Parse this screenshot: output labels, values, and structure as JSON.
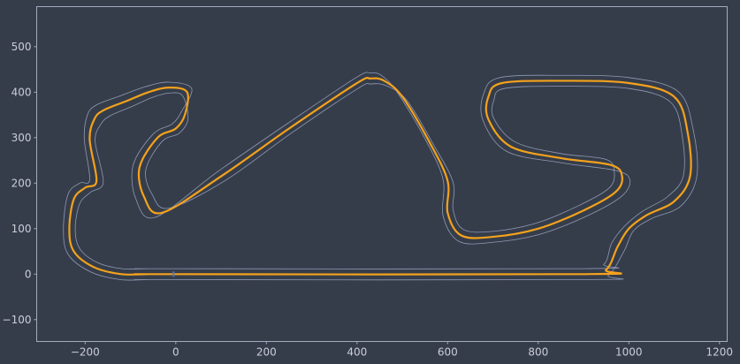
{
  "chart_data": {
    "type": "line",
    "title": "",
    "xlabel": "",
    "ylabel": "",
    "xlim": [
      -307,
      1217
    ],
    "ylim": [
      -148,
      588
    ],
    "grid": false,
    "legend": "none",
    "x_ticks": [
      -200,
      0,
      200,
      400,
      600,
      800,
      1000,
      1200
    ],
    "y_ticks": [
      -100,
      0,
      100,
      200,
      300,
      400,
      500
    ],
    "colors": {
      "background": "#363d4a",
      "frame": "#a3acc0",
      "track_edge": "#8e9ab6",
      "racing_line": "#f4a21c",
      "start_marker": "#4a78c8"
    },
    "series": [
      {
        "kind": "racing-line",
        "x": [
          -10,
          900,
          950,
          975,
          1000,
          1040,
          1100,
          1135,
          1130,
          1100,
          1000,
          850,
          720,
          690,
          690,
          740,
          850,
          960,
          985,
          970,
          900,
          800,
          700,
          630,
          600,
          600,
          560,
          500,
          460,
          430,
          400,
          250,
          100,
          -30,
          -70,
          -80,
          -40,
          0,
          20,
          25,
          -15,
          -60,
          -110,
          -160,
          -180,
          -190,
          -175,
          -200,
          -225,
          -235,
          -225,
          -180,
          -120,
          -60
        ],
        "y": [
          0,
          0,
          10,
          60,
          100,
          130,
          160,
          215,
          310,
          390,
          420,
          425,
          420,
          390,
          340,
          280,
          255,
          240,
          215,
          180,
          140,
          100,
          82,
          85,
          135,
          205,
          290,
          390,
          425,
          430,
          420,
          320,
          215,
          135,
          170,
          235,
          300,
          320,
          350,
          400,
          410,
          400,
          380,
          360,
          340,
          295,
          205,
          190,
          165,
          100,
          50,
          15,
          0,
          0
        ]
      },
      {
        "kind": "outer-edge",
        "x": [
          -10,
          905,
          955,
          990,
          1010,
          1050,
          1115,
          1150,
          1142,
          1108,
          1000,
          850,
          715,
          680,
          678,
          730,
          850,
          970,
          1002,
          985,
          912,
          805,
          700,
          625,
          590,
          590,
          552,
          490,
          455,
          430,
          398,
          245,
          92,
          -45,
          -88,
          -94,
          -50,
          -8,
          13,
          35,
          -15,
          -67,
          -122,
          -175,
          -195,
          -202,
          -190,
          -212,
          -238,
          -248,
          -238,
          -188,
          -122,
          -60
        ],
        "y": [
          -12,
          -12,
          -2,
          52,
          95,
          122,
          150,
          215,
          318,
          402,
          432,
          437,
          432,
          398,
          338,
          270,
          245,
          228,
          208,
          172,
          130,
          88,
          70,
          72,
          128,
          208,
          294,
          398,
          436,
          442,
          432,
          330,
          225,
          125,
          165,
          240,
          308,
          330,
          358,
          408,
          422,
          412,
          392,
          372,
          350,
          298,
          208,
          200,
          175,
          100,
          44,
          5,
          -12,
          -12
        ]
      },
      {
        "kind": "inner-edge",
        "x": [
          -10,
          895,
          945,
          962,
          990,
          1030,
          1085,
          1120,
          1118,
          1092,
          1000,
          850,
          725,
          702,
          702,
          750,
          850,
          950,
          968,
          955,
          888,
          795,
          700,
          635,
          612,
          612,
          568,
          510,
          465,
          430,
          402,
          255,
          108,
          -15,
          -52,
          -66,
          -30,
          8,
          27,
          15,
          -15,
          -53,
          -98,
          -145,
          -165,
          -178,
          -160,
          -188,
          -212,
          -222,
          -212,
          -172,
          -118,
          -60
        ],
        "y": [
          12,
          12,
          22,
          68,
          105,
          138,
          170,
          215,
          302,
          378,
          408,
          413,
          408,
          382,
          342,
          290,
          265,
          252,
          222,
          188,
          150,
          112,
          94,
          98,
          142,
          202,
          286,
          382,
          414,
          418,
          408,
          310,
          205,
          145,
          175,
          230,
          292,
          310,
          342,
          392,
          398,
          388,
          368,
          348,
          330,
          292,
          202,
          180,
          155,
          100,
          56,
          25,
          12,
          12
        ]
      }
    ],
    "start_marker": {
      "x": -5,
      "y": 0
    }
  }
}
